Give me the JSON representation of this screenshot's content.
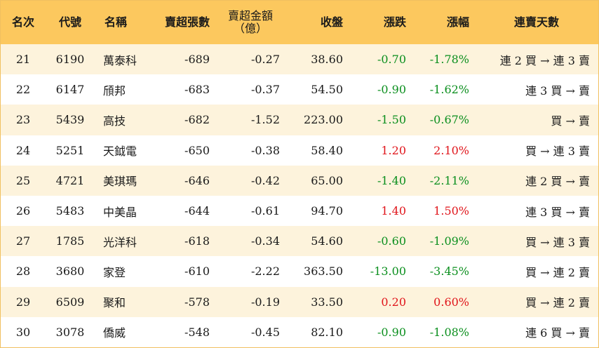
{
  "headers": {
    "rank": "名次",
    "code": "代號",
    "name": "名稱",
    "sell_lots": "賣超張數",
    "sell_amount_line1": "賣超金額",
    "sell_amount_line2": "（億）",
    "close": "收盤",
    "change": "漲跌",
    "change_pct": "漲幅",
    "streak": "連賣天數"
  },
  "colors": {
    "header_bg": "#fcc85e",
    "odd_row_bg": "#fdf3dc",
    "up": "#e0151b",
    "down": "#0b8f1e"
  },
  "rows": [
    {
      "rank": "21",
      "code": "6190",
      "name": "萬泰科",
      "sell_lots": "-689",
      "sell_amount": "-0.27",
      "close": "38.60",
      "change": "-0.70",
      "change_pct": "-1.78%",
      "dir": "down",
      "streak": "連 2 買 → 連 3 賣"
    },
    {
      "rank": "22",
      "code": "6147",
      "name": "頎邦",
      "sell_lots": "-683",
      "sell_amount": "-0.37",
      "close": "54.50",
      "change": "-0.90",
      "change_pct": "-1.62%",
      "dir": "down",
      "streak": "連 3 買 → 賣"
    },
    {
      "rank": "23",
      "code": "5439",
      "name": "高技",
      "sell_lots": "-682",
      "sell_amount": "-1.52",
      "close": "223.00",
      "change": "-1.50",
      "change_pct": "-0.67%",
      "dir": "down",
      "streak": "買 → 賣"
    },
    {
      "rank": "24",
      "code": "5251",
      "name": "天鉞電",
      "sell_lots": "-650",
      "sell_amount": "-0.38",
      "close": "58.40",
      "change": "1.20",
      "change_pct": "2.10%",
      "dir": "up",
      "streak": "買 → 連 3 賣"
    },
    {
      "rank": "25",
      "code": "4721",
      "name": "美琪瑪",
      "sell_lots": "-646",
      "sell_amount": "-0.42",
      "close": "65.00",
      "change": "-1.40",
      "change_pct": "-2.11%",
      "dir": "down",
      "streak": "連 2 買 → 賣"
    },
    {
      "rank": "26",
      "code": "5483",
      "name": "中美晶",
      "sell_lots": "-644",
      "sell_amount": "-0.61",
      "close": "94.70",
      "change": "1.40",
      "change_pct": "1.50%",
      "dir": "up",
      "streak": "連 3 買 → 賣"
    },
    {
      "rank": "27",
      "code": "1785",
      "name": "光洋科",
      "sell_lots": "-618",
      "sell_amount": "-0.34",
      "close": "54.60",
      "change": "-0.60",
      "change_pct": "-1.09%",
      "dir": "down",
      "streak": "買 → 連 3 賣"
    },
    {
      "rank": "28",
      "code": "3680",
      "name": "家登",
      "sell_lots": "-610",
      "sell_amount": "-2.22",
      "close": "363.50",
      "change": "-13.00",
      "change_pct": "-3.45%",
      "dir": "down",
      "streak": "買 → 連 2 賣"
    },
    {
      "rank": "29",
      "code": "6509",
      "name": "聚和",
      "sell_lots": "-578",
      "sell_amount": "-0.19",
      "close": "33.50",
      "change": "0.20",
      "change_pct": "0.60%",
      "dir": "up",
      "streak": "買 → 連 2 賣"
    },
    {
      "rank": "30",
      "code": "3078",
      "name": "僑威",
      "sell_lots": "-548",
      "sell_amount": "-0.45",
      "close": "82.10",
      "change": "-0.90",
      "change_pct": "-1.08%",
      "dir": "down",
      "streak": "連 6 買 → 賣"
    }
  ]
}
